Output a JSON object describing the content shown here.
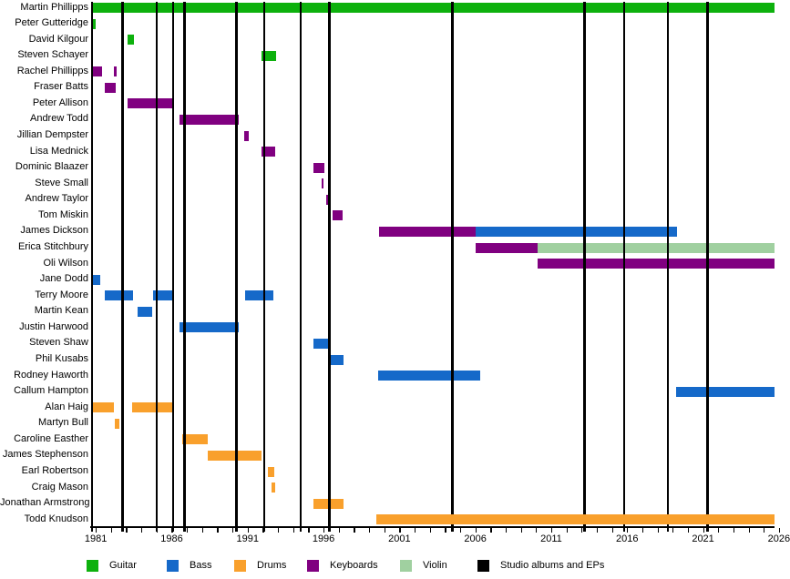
{
  "chart_data": {
    "type": "timeline",
    "description": "Band member timeline gantt chart: members vs years, colored by instrument, with black vertical lines marking studio albums and EPs",
    "x_axis": {
      "start": 1980.75,
      "end": 2026.3,
      "minor_tick_every": 1,
      "label_every": 5,
      "tick_labels": [
        "1981",
        "1986",
        "1991",
        "1996",
        "2001",
        "2006",
        "2011",
        "2016",
        "2021",
        "2026"
      ],
      "label_years": [
        1981,
        1986,
        1991,
        1996,
        2001,
        2006,
        2011,
        2016,
        2021,
        2026
      ]
    },
    "instrument_colors": {
      "Guitar": "#0db10d",
      "Bass": "#1569c9",
      "Drums": "#f9a02c",
      "Keyboards": "#800080",
      "Violin": "#a0d0a0"
    },
    "album_lines": {
      "label": "Studio albums and EPs",
      "color": "#000000",
      "years": [
        1982.75,
        1985.0,
        1986.1,
        1986.85,
        1990.25,
        1992.1,
        1994.5,
        1996.4,
        2004.5,
        2013.2,
        2015.8,
        2018.7,
        2021.3
      ]
    },
    "members": [
      {
        "name": "Martin Phillipps",
        "segments": [
          {
            "instrument": "Guitar",
            "from": 1980.75,
            "to": 2026.3
          }
        ]
      },
      {
        "name": "Peter Gutteridge",
        "segments": [
          {
            "instrument": "Guitar",
            "from": 1980.75,
            "to": 1981.0
          }
        ]
      },
      {
        "name": "David Kilgour",
        "segments": [
          {
            "instrument": "Guitar",
            "from": 1983.1,
            "to": 1983.5
          }
        ]
      },
      {
        "name": "Steven Schayer",
        "segments": [
          {
            "instrument": "Guitar",
            "from": 1991.9,
            "to": 1992.85
          }
        ]
      },
      {
        "name": "Rachel Phillipps",
        "segments": [
          {
            "instrument": "Keyboards",
            "from": 1980.75,
            "to": 1981.4
          },
          {
            "instrument": "Keyboards",
            "from": 1982.2,
            "to": 1982.4
          }
        ]
      },
      {
        "name": "Fraser Batts",
        "segments": [
          {
            "instrument": "Keyboards",
            "from": 1981.6,
            "to": 1982.3
          }
        ]
      },
      {
        "name": "Peter Allison",
        "segments": [
          {
            "instrument": "Keyboards",
            "from": 1983.1,
            "to": 1986.1
          }
        ]
      },
      {
        "name": "Andrew Todd",
        "segments": [
          {
            "instrument": "Keyboards",
            "from": 1986.5,
            "to": 1990.4
          }
        ]
      },
      {
        "name": "Jillian Dempster",
        "segments": [
          {
            "instrument": "Keyboards",
            "from": 1990.75,
            "to": 1991.05
          }
        ]
      },
      {
        "name": "Lisa Mednick",
        "segments": [
          {
            "instrument": "Keyboards",
            "from": 1991.9,
            "to": 1992.8
          }
        ]
      },
      {
        "name": "Dominic Blaazer",
        "segments": [
          {
            "instrument": "Keyboards",
            "from": 1995.35,
            "to": 1996.05
          }
        ]
      },
      {
        "name": "Steve Small",
        "segments": [
          {
            "instrument": "Keyboards",
            "from": 1995.85,
            "to": 1996.0
          }
        ]
      },
      {
        "name": "Andrew Taylor",
        "segments": [
          {
            "instrument": "Keyboards",
            "from": 1996.15,
            "to": 1996.4
          }
        ]
      },
      {
        "name": "Tom Miskin",
        "segments": [
          {
            "instrument": "Keyboards",
            "from": 1996.6,
            "to": 1997.25
          }
        ]
      },
      {
        "name": "James Dickson",
        "segments": [
          {
            "instrument": "Keyboards",
            "from": 1999.65,
            "to": 2006.0
          },
          {
            "instrument": "Bass",
            "from": 2006.0,
            "to": 2019.3
          }
        ]
      },
      {
        "name": "Erica Stitchbury",
        "segments": [
          {
            "instrument": "Keyboards",
            "from": 2006.0,
            "to": 2010.1
          },
          {
            "instrument": "Violin",
            "from": 2010.1,
            "to": 2026.3
          }
        ]
      },
      {
        "name": "Oli Wilson",
        "segments": [
          {
            "instrument": "Keyboards",
            "from": 2010.1,
            "to": 2026.3
          }
        ]
      },
      {
        "name": "Jane Dodd",
        "segments": [
          {
            "instrument": "Bass",
            "from": 1980.75,
            "to": 1981.3
          }
        ]
      },
      {
        "name": "Terry Moore",
        "segments": [
          {
            "instrument": "Bass",
            "from": 1981.6,
            "to": 1983.45
          },
          {
            "instrument": "Bass",
            "from": 1984.8,
            "to": 1986.1
          },
          {
            "instrument": "Bass",
            "from": 1990.85,
            "to": 1992.7
          }
        ]
      },
      {
        "name": "Martin Kean",
        "segments": [
          {
            "instrument": "Bass",
            "from": 1983.75,
            "to": 1984.7
          }
        ]
      },
      {
        "name": "Justin Harwood",
        "segments": [
          {
            "instrument": "Bass",
            "from": 1986.5,
            "to": 1990.4
          }
        ]
      },
      {
        "name": "Steven Shaw",
        "segments": [
          {
            "instrument": "Bass",
            "from": 1995.35,
            "to": 1996.35
          }
        ]
      },
      {
        "name": "Phil Kusabs",
        "segments": [
          {
            "instrument": "Bass",
            "from": 1996.5,
            "to": 1997.3
          }
        ]
      },
      {
        "name": "Rodney Haworth",
        "segments": [
          {
            "instrument": "Bass",
            "from": 1999.6,
            "to": 2006.3
          }
        ]
      },
      {
        "name": "Callum Hampton",
        "segments": [
          {
            "instrument": "Bass",
            "from": 2019.2,
            "to": 2026.3
          }
        ]
      },
      {
        "name": "Alan Haig",
        "segments": [
          {
            "instrument": "Drums",
            "from": 1980.75,
            "to": 1982.2
          },
          {
            "instrument": "Drums",
            "from": 1983.4,
            "to": 1986.1
          }
        ]
      },
      {
        "name": "Martyn Bull",
        "segments": [
          {
            "instrument": "Drums",
            "from": 1982.25,
            "to": 1982.55
          }
        ]
      },
      {
        "name": "Caroline Easther",
        "segments": [
          {
            "instrument": "Drums",
            "from": 1986.7,
            "to": 1988.4
          }
        ]
      },
      {
        "name": "James Stephenson",
        "segments": [
          {
            "instrument": "Drums",
            "from": 1988.4,
            "to": 1991.9
          }
        ]
      },
      {
        "name": "Earl Robertson",
        "segments": [
          {
            "instrument": "Drums",
            "from": 1992.35,
            "to": 1992.75
          }
        ]
      },
      {
        "name": "Craig Mason",
        "segments": [
          {
            "instrument": "Drums",
            "from": 1992.6,
            "to": 1992.8
          }
        ]
      },
      {
        "name": "Jonathan Armstrong",
        "segments": [
          {
            "instrument": "Drums",
            "from": 1995.35,
            "to": 1997.3
          }
        ]
      },
      {
        "name": "Todd Knudson",
        "segments": [
          {
            "instrument": "Drums",
            "from": 1999.5,
            "to": 2026.3
          }
        ],
        "above_lines": true
      }
    ],
    "legend": [
      {
        "label": "Guitar",
        "color": "#0db10d"
      },
      {
        "label": "Bass",
        "color": "#1569c9"
      },
      {
        "label": "Drums",
        "color": "#f9a02c"
      },
      {
        "label": "Keyboards",
        "color": "#800080"
      },
      {
        "label": "Violin",
        "color": "#a0d0a0"
      },
      {
        "label": "Studio albums and EPs",
        "color": "#000000"
      }
    ]
  }
}
